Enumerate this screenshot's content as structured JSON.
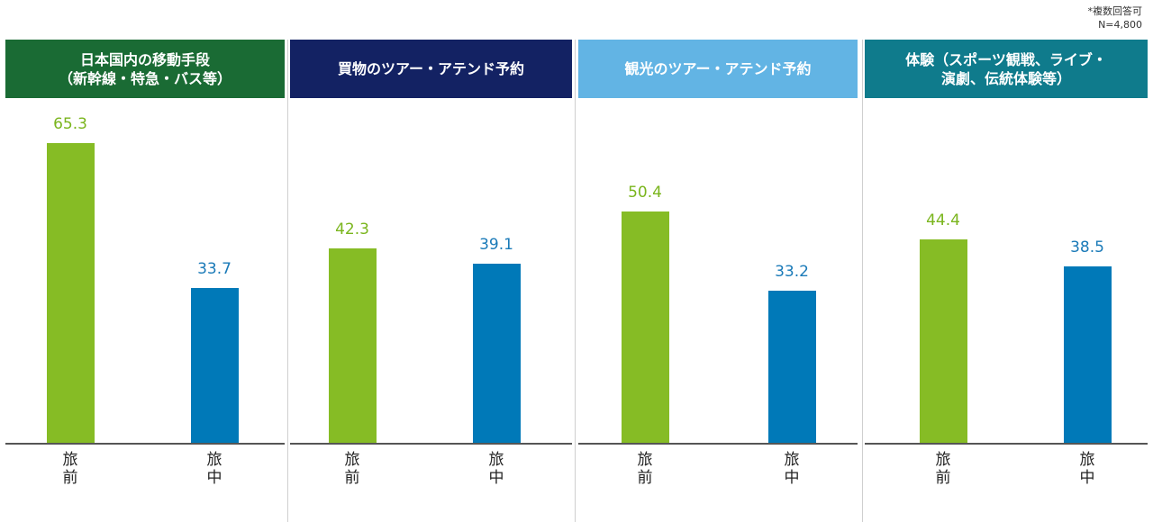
{
  "notes": [
    "*複数回答可",
    "N=4,800"
  ],
  "colors": {
    "before": "#86bc25",
    "during": "#0079b8",
    "before_label": "#7ab51d",
    "during_label": "#1a7ab8"
  },
  "chart_data": {
    "type": "bar",
    "categories": [
      "旅\n前",
      "旅\n中"
    ],
    "ylim": [
      0,
      70
    ],
    "grid": false,
    "panels": [
      {
        "title": "日本国内の移動手段\n（新幹線・特急・バス等）",
        "header_color": "#1a6b34",
        "values": [
          65.3,
          33.7
        ]
      },
      {
        "title": "買物のツアー・アテンド予約",
        "header_color": "#132263",
        "values": [
          42.3,
          39.1
        ]
      },
      {
        "title": "観光のツアー・アテンド予約",
        "header_color": "#62b4e4",
        "values": [
          50.4,
          33.2
        ]
      },
      {
        "title": "体験（スポーツ観戦、ライブ・\n演劇、伝統体験等）",
        "header_color": "#0f7b8c",
        "values": [
          44.4,
          38.5
        ]
      }
    ]
  }
}
